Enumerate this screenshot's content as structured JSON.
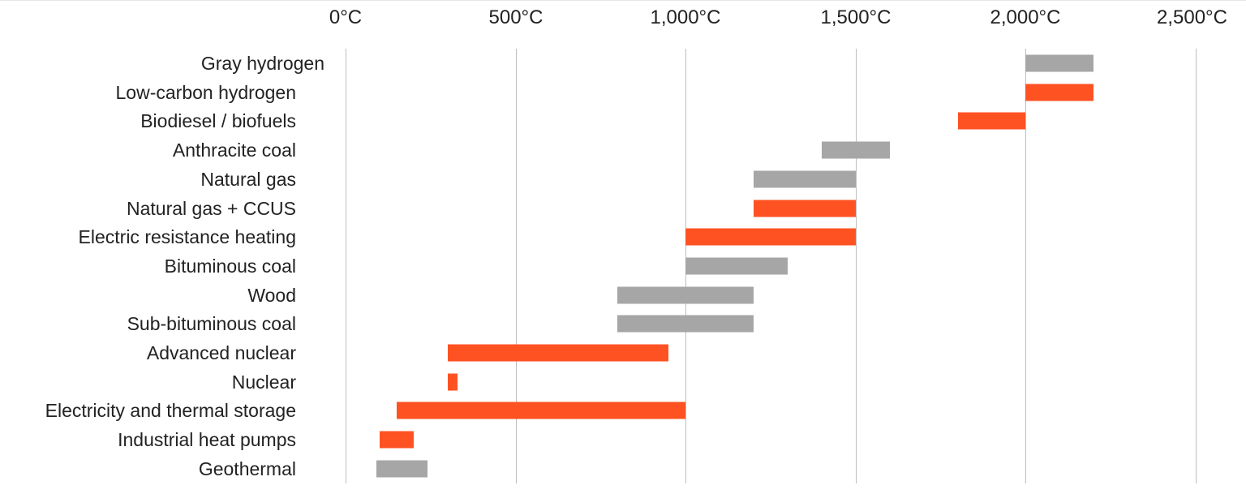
{
  "chart_data": {
    "type": "bar",
    "orientation": "horizontal-range",
    "title": "",
    "xlabel": "",
    "ylabel": "",
    "xlim": [
      0,
      2500
    ],
    "x_ticks": [
      "0°C",
      "500°C",
      "1,000°C",
      "1,500°C",
      "2,000°C",
      "2,500°C"
    ],
    "x_tick_values": [
      0,
      500,
      1000,
      1500,
      2000,
      2500
    ],
    "grid": true,
    "legend": null,
    "colors": {
      "low_carbon": "#ff5222",
      "conventional": "#a6a6a6"
    },
    "categories": [
      "Gray hydrogen",
      "Low-carbon hydrogen",
      "Biodiesel / biofuels",
      "Anthracite coal",
      "Natural gas",
      "Natural gas + CCUS",
      "Electric resistance heating",
      "Bituminous coal",
      "Wood",
      "Sub-bituminous coal",
      "Advanced nuclear",
      "Nuclear",
      "Electricity and thermal storage",
      "Industrial heat pumps",
      "Geothermal"
    ],
    "ranges": [
      {
        "label": "Gray hydrogen",
        "min": 2000,
        "max": 2200,
        "group": "conventional"
      },
      {
        "label": "Low-carbon hydrogen",
        "min": 2000,
        "max": 2200,
        "group": "low_carbon"
      },
      {
        "label": "Biodiesel / biofuels",
        "min": 1800,
        "max": 2000,
        "group": "low_carbon"
      },
      {
        "label": "Anthracite coal",
        "min": 1400,
        "max": 1600,
        "group": "conventional"
      },
      {
        "label": "Natural gas",
        "min": 1200,
        "max": 1500,
        "group": "conventional"
      },
      {
        "label": "Natural gas + CCUS",
        "min": 1200,
        "max": 1500,
        "group": "low_carbon"
      },
      {
        "label": "Electric resistance heating",
        "min": 1000,
        "max": 1500,
        "group": "low_carbon"
      },
      {
        "label": "Bituminous coal",
        "min": 1000,
        "max": 1300,
        "group": "conventional"
      },
      {
        "label": "Wood",
        "min": 800,
        "max": 1200,
        "group": "conventional"
      },
      {
        "label": "Sub-bituminous coal",
        "min": 800,
        "max": 1200,
        "group": "conventional"
      },
      {
        "label": "Advanced nuclear",
        "min": 300,
        "max": 950,
        "group": "low_carbon"
      },
      {
        "label": "Nuclear",
        "min": 300,
        "max": 330,
        "group": "low_carbon"
      },
      {
        "label": "Electricity and thermal storage",
        "min": 150,
        "max": 1000,
        "group": "low_carbon"
      },
      {
        "label": "Industrial heat pumps",
        "min": 100,
        "max": 200,
        "group": "low_carbon"
      },
      {
        "label": "Geothermal",
        "min": 90,
        "max": 240,
        "group": "conventional"
      }
    ]
  }
}
